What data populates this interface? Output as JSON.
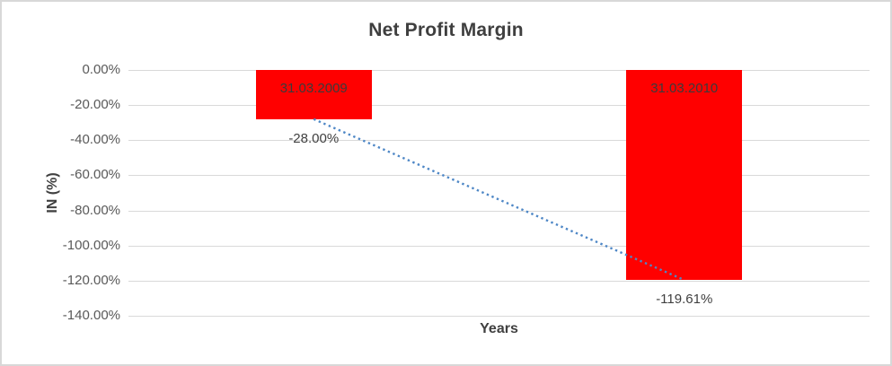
{
  "chart_data": {
    "type": "bar",
    "title": "Net Profit Margin",
    "xlabel": "Years",
    "ylabel": "IN (%)",
    "categories": [
      "31.03.2009",
      "31.03.2010"
    ],
    "values": [
      -28.0,
      -119.61
    ],
    "data_labels": [
      "-28.00%",
      "-119.61%"
    ],
    "category_label_position": "inside-top",
    "bar_color": "#ff0000",
    "ylim": [
      -140,
      0
    ],
    "yticks": [
      {
        "value": 0,
        "label": "0.00%"
      },
      {
        "value": -20,
        "label": "-20.00%"
      },
      {
        "value": -40,
        "label": "-40.00%"
      },
      {
        "value": -60,
        "label": "-60.00%"
      },
      {
        "value": -80,
        "label": "-80.00%"
      },
      {
        "value": -100,
        "label": "-100.00%"
      },
      {
        "value": -120,
        "label": "-120.00%"
      },
      {
        "value": -140,
        "label": "-140.00%"
      }
    ],
    "grid": true,
    "legend": "none",
    "trendline": {
      "type": "linear",
      "style": "dotted",
      "color": "#4e87c6",
      "points": [
        [
          0,
          -28.0
        ],
        [
          1,
          -119.61
        ]
      ]
    },
    "colors": {
      "gridline": "#d9d9d9",
      "border": "#d8d8d8",
      "title_text": "#3f3f3f",
      "tick_text": "#595959",
      "bar_label_text": "#3b3b3b"
    }
  }
}
